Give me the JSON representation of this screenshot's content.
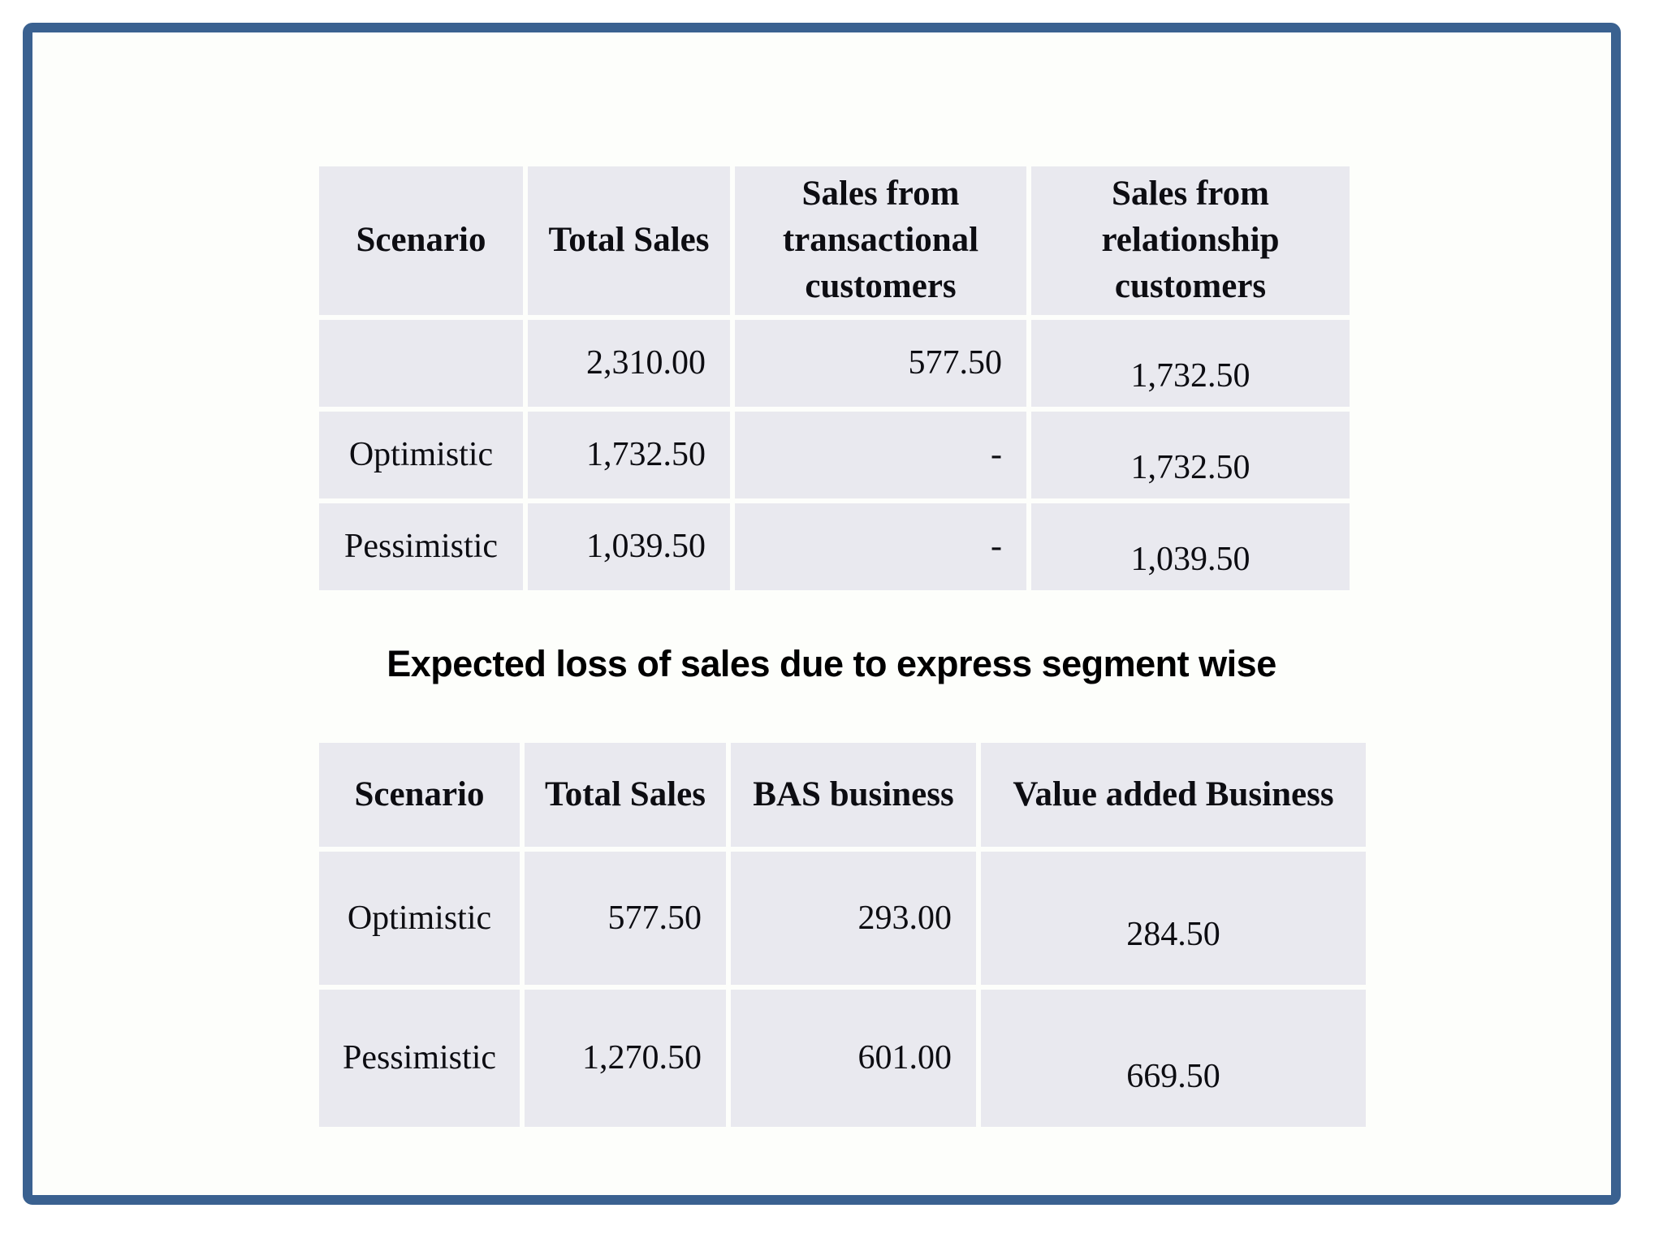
{
  "colors": {
    "frame_border": "#3a6190",
    "cell_background": "#e9e9ef",
    "slide_background": "#fdfefb",
    "text": "#0d0d12"
  },
  "section_title": "Expected loss of sales due to express segment wise",
  "table1": {
    "columns": [
      "Scenario",
      "Total Sales",
      "Sales from transactional customers",
      "Sales from relationship customers"
    ],
    "rows": [
      [
        "",
        "2,310.00",
        "577.50",
        "1,732.50"
      ],
      [
        "Optimistic",
        "1,732.50",
        "-",
        "1,732.50"
      ],
      [
        "Pessimistic",
        "1,039.50",
        "-",
        "1,039.50"
      ]
    ]
  },
  "table2": {
    "columns": [
      "Scenario",
      "Total Sales",
      "BAS business",
      "Value added Business"
    ],
    "rows": [
      [
        "Optimistic",
        "577.50",
        "293.00",
        "284.50"
      ],
      [
        "Pessimistic",
        "1,270.50",
        "601.00",
        "669.50"
      ]
    ]
  }
}
